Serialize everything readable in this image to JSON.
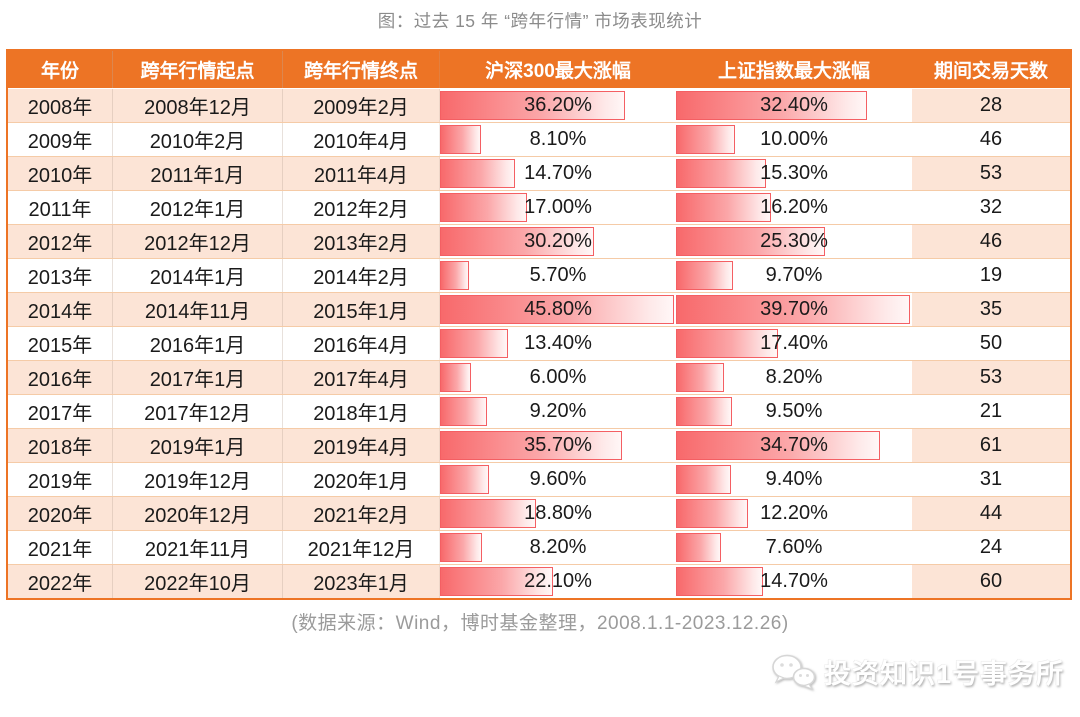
{
  "page": {
    "title": "图：过去 15 年 “跨年行情” 市场表现统计",
    "source_note": "(数据来源：Wind，博时基金整理，2008.1.1-2023.12.26)",
    "watermark_label": "投资知识1号事务所",
    "watermark_icon": "wechat-chat-bubbles-icon"
  },
  "colors": {
    "header_bg": "#ED7425",
    "header_text": "#FFFFFF",
    "row_stripe": "#FCE4D6",
    "row_plain": "#FFFFFF",
    "row_divider": "#F5CBA7",
    "bar_red": "#F8696B",
    "bar_border": "#F45F63",
    "title_text": "#8B8B8B",
    "note_text": "#9B9B9B",
    "cell_text": "#1A1A1A"
  },
  "chart_data": {
    "type": "table",
    "title": "图：过去 15 年 “跨年行情” 市场表现统计",
    "columns": [
      "年份",
      "跨年行情起点",
      "跨年行情终点",
      "沪深300最大涨幅",
      "上证指数最大涨幅",
      "期间交易天数"
    ],
    "rows": [
      [
        "2008年",
        "2008年12月",
        "2009年2月",
        "36.20%",
        "32.40%",
        "28"
      ],
      [
        "2009年",
        "2010年2月",
        "2010年4月",
        "8.10%",
        "10.00%",
        "46"
      ],
      [
        "2010年",
        "2011年1月",
        "2011年4月",
        "14.70%",
        "15.30%",
        "53"
      ],
      [
        "2011年",
        "2012年1月",
        "2012年2月",
        "17.00%",
        "16.20%",
        "32"
      ],
      [
        "2012年",
        "2012年12月",
        "2013年2月",
        "30.20%",
        "25.30%",
        "46"
      ],
      [
        "2013年",
        "2014年1月",
        "2014年2月",
        "5.70%",
        "9.70%",
        "19"
      ],
      [
        "2014年",
        "2014年11月",
        "2015年1月",
        "45.80%",
        "39.70%",
        "35"
      ],
      [
        "2015年",
        "2016年1月",
        "2016年4月",
        "13.40%",
        "17.40%",
        "50"
      ],
      [
        "2016年",
        "2017年1月",
        "2017年4月",
        "6.00%",
        "8.20%",
        "53"
      ],
      [
        "2017年",
        "2017年12月",
        "2018年1月",
        "9.20%",
        "9.50%",
        "21"
      ],
      [
        "2018年",
        "2019年1月",
        "2019年4月",
        "35.70%",
        "34.70%",
        "61"
      ],
      [
        "2019年",
        "2019年12月",
        "2020年1月",
        "9.60%",
        "9.40%",
        "31"
      ],
      [
        "2020年",
        "2020年12月",
        "2021年2月",
        "18.80%",
        "12.20%",
        "44"
      ],
      [
        "2021年",
        "2021年11月",
        "2021年12月",
        "8.20%",
        "7.60%",
        "24"
      ],
      [
        "2022年",
        "2022年10月",
        "2023年1月",
        "22.10%",
        "14.70%",
        "60"
      ]
    ],
    "bar_columns": {
      "csi300_axis_max": 45.8,
      "sse_axis_max": 39.7,
      "scale": "bar width proportional to value / axis max, zero-based"
    },
    "source_note": "(数据来源：Wind，博时基金整理，2008.1.1-2023.12.26)"
  }
}
